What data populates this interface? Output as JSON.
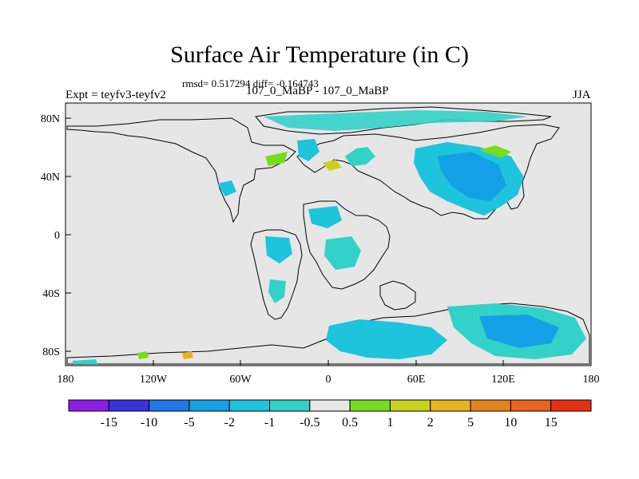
{
  "title": "Surface Air Temperature (in C)",
  "stats_line": "rmsd= 0.517294 diff= -0.164743",
  "left_label": "Expt = teyfv3-teyfv2",
  "center_label": "107_0_MaBP - 107_0_MaBP",
  "right_label": "JJA",
  "map": {
    "lon_range": [
      -180,
      180
    ],
    "lat_range": [
      -90,
      90
    ],
    "ocean_color": "#e6e6e6",
    "x_ticks": [
      "180",
      "120W",
      "60W",
      "0",
      "60E",
      "120E",
      "180"
    ],
    "y_ticks": [
      "80N",
      "40N",
      "0",
      "40S",
      "80S"
    ]
  },
  "colorbar": {
    "labels": [
      "-15",
      "-10",
      "-5",
      "-2",
      "-1",
      "-0.5",
      "0.5",
      "1",
      "2",
      "5",
      "10",
      "15"
    ],
    "colors": [
      "#8c1ee6",
      "#3c32dc",
      "#1e78e6",
      "#14a0e6",
      "#1ec3dc",
      "#32d2c8",
      "#e6e6e6",
      "#78dc1e",
      "#c8d21e",
      "#e6b41e",
      "#e6821e",
      "#e6641e",
      "#e63214"
    ]
  }
}
